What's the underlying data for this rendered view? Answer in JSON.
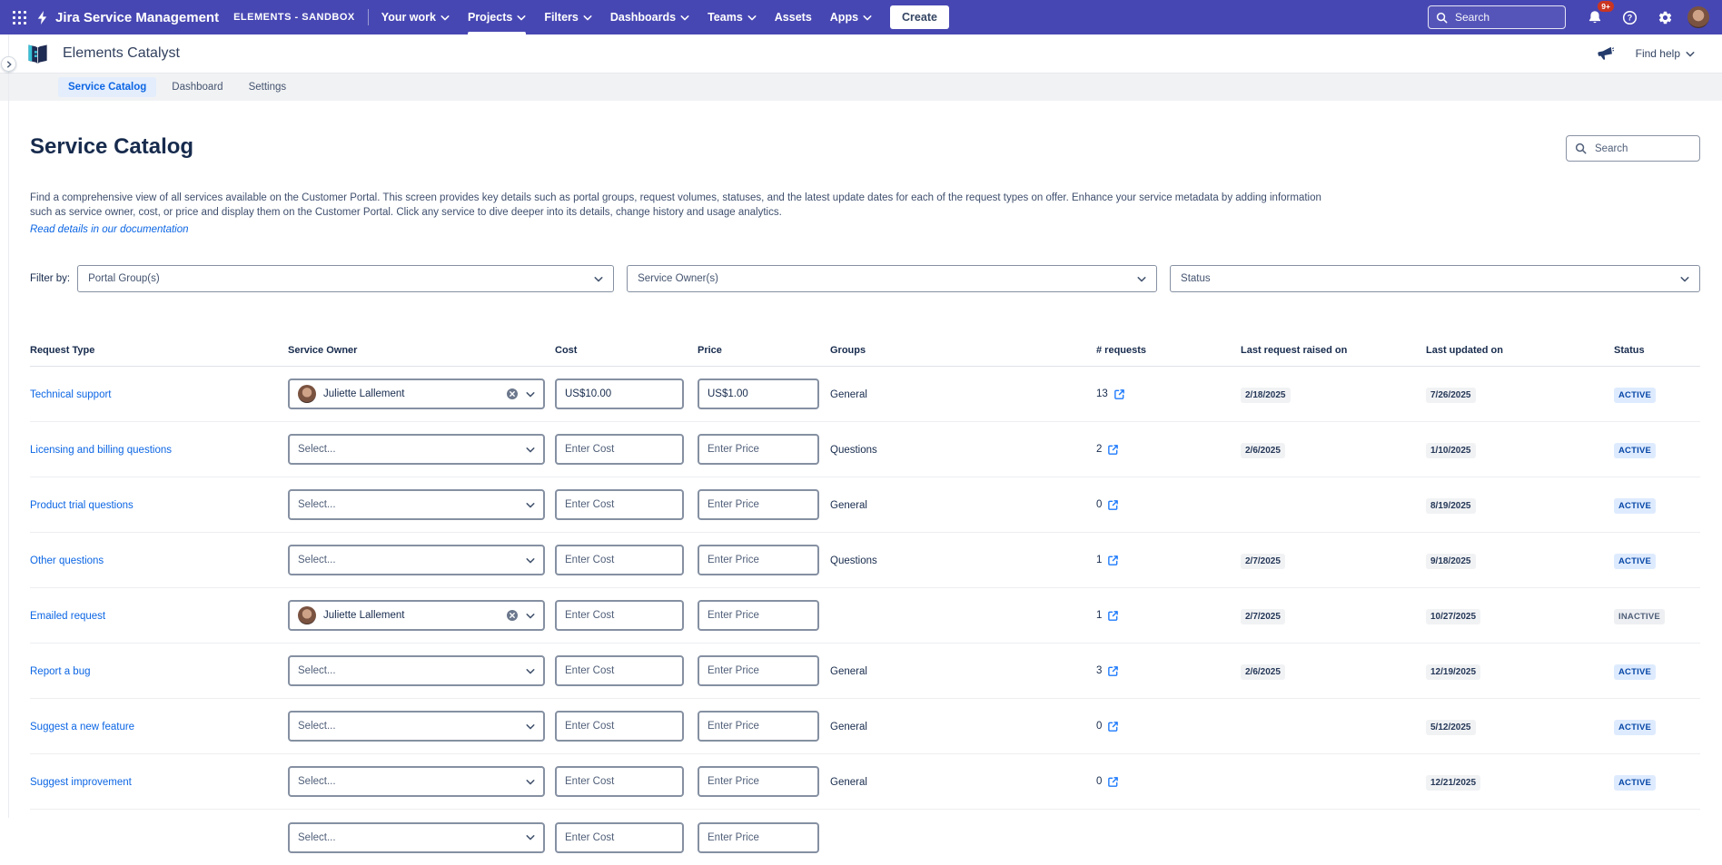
{
  "topnav": {
    "product_title": "Jira Service Management",
    "env_label": "ELEMENTS - SANDBOX",
    "menu": [
      {
        "label": "Your work",
        "chevron": true,
        "active": false
      },
      {
        "label": "Projects",
        "chevron": true,
        "active": true
      },
      {
        "label": "Filters",
        "chevron": true,
        "active": false
      },
      {
        "label": "Dashboards",
        "chevron": true,
        "active": false
      },
      {
        "label": "Teams",
        "chevron": true,
        "active": false
      },
      {
        "label": "Assets",
        "chevron": false,
        "active": false
      },
      {
        "label": "Apps",
        "chevron": true,
        "active": false
      }
    ],
    "create_label": "Create",
    "search_placeholder": "Search",
    "notification_badge": "9+"
  },
  "app_header": {
    "title": "Elements Catalyst",
    "find_help_label": "Find help"
  },
  "tabs": [
    {
      "label": "Service Catalog",
      "active": true
    },
    {
      "label": "Dashboard",
      "active": false
    },
    {
      "label": "Settings",
      "active": false
    }
  ],
  "page": {
    "title": "Service Catalog",
    "search_placeholder": "Search",
    "description_line1": "Find a comprehensive view of all services available on the Customer Portal. This screen provides key details such as portal groups, request volumes, statuses, and the latest update dates for each of the request types on offer. Enhance your service metadata by adding information",
    "description_line2": "such as service owner, cost, or price and display them on the Customer Portal. Click any service to dive deeper into its details, change history and usage analytics.",
    "doc_link_label": "Read details in our documentation",
    "filter_label": "Filter by:",
    "filters": [
      "Portal Group(s)",
      "Service Owner(s)",
      "Status"
    ]
  },
  "table": {
    "headers": [
      "Request Type",
      "Service Owner",
      "Cost",
      "Price",
      "Groups",
      "# requests",
      "Last request raised on",
      "Last updated on",
      "Status"
    ],
    "select_placeholder": "Select...",
    "cost_placeholder": "Enter Cost",
    "price_placeholder": "Enter Price",
    "rows": [
      {
        "request_type": "Technical support",
        "owner": "Juliette Lallement",
        "cost_value": "US$10.00",
        "price_value": "US$1.00",
        "groups": "General",
        "requests": "13",
        "last_request": "2/18/2025",
        "last_updated": "7/26/2025",
        "status": "ACTIVE",
        "partial": false
      },
      {
        "request_type": "Licensing and billing questions",
        "owner": null,
        "cost_value": "",
        "price_value": "",
        "groups": "Questions",
        "requests": "2",
        "last_request": "2/6/2025",
        "last_updated": "1/10/2025",
        "status": "ACTIVE",
        "partial": false
      },
      {
        "request_type": "Product trial questions",
        "owner": null,
        "cost_value": "",
        "price_value": "",
        "groups": "General",
        "requests": "0",
        "last_request": "",
        "last_updated": "8/19/2025",
        "status": "ACTIVE",
        "partial": false
      },
      {
        "request_type": "Other questions",
        "owner": null,
        "cost_value": "",
        "price_value": "",
        "groups": "Questions",
        "requests": "1",
        "last_request": "2/7/2025",
        "last_updated": "9/18/2025",
        "status": "ACTIVE",
        "partial": false
      },
      {
        "request_type": "Emailed request",
        "owner": "Juliette Lallement",
        "cost_value": "",
        "price_value": "",
        "groups": "",
        "requests": "1",
        "last_request": "2/7/2025",
        "last_updated": "10/27/2025",
        "status": "INACTIVE",
        "partial": false
      },
      {
        "request_type": "Report a bug",
        "owner": null,
        "cost_value": "",
        "price_value": "",
        "groups": "General",
        "requests": "3",
        "last_request": "2/6/2025",
        "last_updated": "12/19/2025",
        "status": "ACTIVE",
        "partial": false
      },
      {
        "request_type": "Suggest a new feature",
        "owner": null,
        "cost_value": "",
        "price_value": "",
        "groups": "General",
        "requests": "0",
        "last_request": "",
        "last_updated": "5/12/2025",
        "status": "ACTIVE",
        "partial": false
      },
      {
        "request_type": "Suggest improvement",
        "owner": null,
        "cost_value": "",
        "price_value": "",
        "groups": "General",
        "requests": "0",
        "last_request": "",
        "last_updated": "12/21/2025",
        "status": "ACTIVE",
        "partial": false
      },
      {
        "request_type": "",
        "owner": null,
        "cost_value": "",
        "price_value": "",
        "groups": "",
        "requests": "",
        "last_request": "",
        "last_updated": "",
        "status": "",
        "partial": true
      }
    ]
  }
}
